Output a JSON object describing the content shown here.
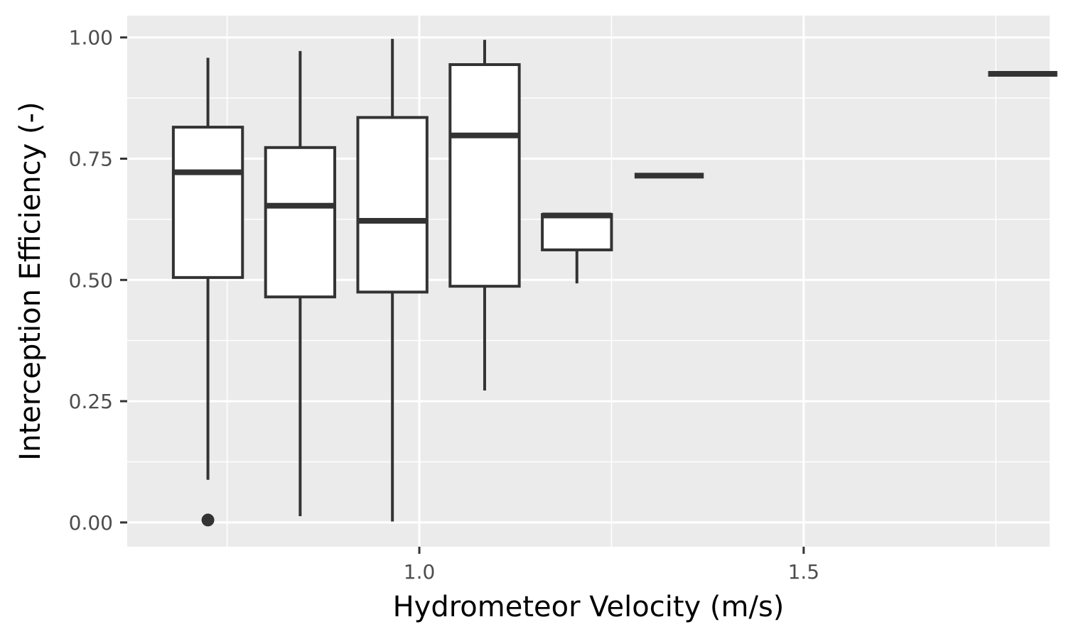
{
  "chart_data": {
    "type": "boxplot",
    "title": "",
    "xlabel": "Hydrometeor Velocity (m/s)",
    "ylabel": "Interception Efficiency (-)",
    "xlim": [
      0.62,
      1.82
    ],
    "ylim": [
      -0.05,
      1.045
    ],
    "x_ticks": [
      {
        "value": 1.0,
        "label": "1.0"
      },
      {
        "value": 1.5,
        "label": "1.5"
      }
    ],
    "x_minor_ticks": [
      0.75,
      1.25,
      1.75
    ],
    "y_ticks": [
      {
        "value": 0.0,
        "label": "0.00"
      },
      {
        "value": 0.25,
        "label": "0.25"
      },
      {
        "value": 0.5,
        "label": "0.50"
      },
      {
        "value": 0.75,
        "label": "0.75"
      },
      {
        "value": 1.0,
        "label": "1.00"
      }
    ],
    "y_minor_ticks": [
      0.125,
      0.375,
      0.625,
      0.875
    ],
    "box_width": 0.09,
    "grid": true,
    "colors": {
      "panel": "#ebebeb",
      "grid": "#ffffff",
      "box_fill": "#ffffff",
      "box_stroke": "#333333"
    },
    "boxes": [
      {
        "x": 0.725,
        "whisker_low": 0.088,
        "q1": 0.505,
        "median": 0.722,
        "q3": 0.815,
        "whisker_high": 0.958,
        "outliers": [
          0.005
        ]
      },
      {
        "x": 0.845,
        "whisker_low": 0.013,
        "q1": 0.465,
        "median": 0.653,
        "q3": 0.773,
        "whisker_high": 0.972,
        "outliers": []
      },
      {
        "x": 0.965,
        "whisker_low": 0.002,
        "q1": 0.475,
        "median": 0.622,
        "q3": 0.835,
        "whisker_high": 0.997,
        "outliers": []
      },
      {
        "x": 1.085,
        "whisker_low": 0.272,
        "q1": 0.487,
        "median": 0.798,
        "q3": 0.944,
        "whisker_high": 0.995,
        "outliers": []
      },
      {
        "x": 1.205,
        "whisker_low": 0.493,
        "q1": 0.562,
        "median": 0.633,
        "q3": 0.635,
        "whisker_high": 0.635,
        "outliers": []
      },
      {
        "x": 1.325,
        "whisker_low": 0.715,
        "q1": 0.715,
        "median": 0.715,
        "q3": 0.715,
        "whisker_high": 0.715,
        "outliers": []
      },
      {
        "x": 1.785,
        "whisker_low": 0.925,
        "q1": 0.925,
        "median": 0.925,
        "q3": 0.925,
        "whisker_high": 0.925,
        "outliers": []
      }
    ]
  }
}
